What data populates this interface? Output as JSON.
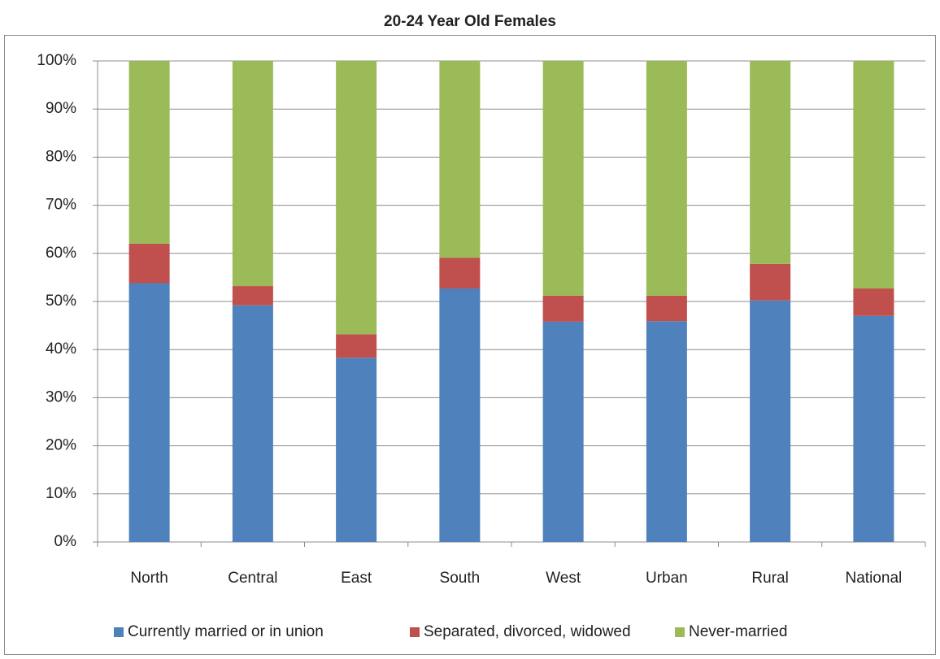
{
  "chart_data": {
    "type": "bar",
    "stacked": true,
    "title": "20-24 Year Old Females",
    "categories": [
      "North",
      "Central",
      "East",
      "South",
      "West",
      "Urban",
      "Rural",
      "National"
    ],
    "series": [
      {
        "name": "Currently married or in union",
        "color": "#4f81bd",
        "values": [
          53.8,
          49.2,
          38.3,
          52.7,
          45.8,
          45.9,
          50.2,
          47.0
        ]
      },
      {
        "name": "Separated, divorced, widowed",
        "color": "#c0504d",
        "values": [
          8.2,
          4.0,
          4.9,
          6.4,
          5.4,
          5.3,
          7.6,
          5.7
        ]
      },
      {
        "name": "Never-married",
        "color": "#9bbb59",
        "values": [
          38.0,
          46.8,
          56.8,
          40.9,
          48.8,
          48.8,
          42.2,
          47.3
        ]
      }
    ],
    "ylim": [
      0,
      100
    ],
    "yticks": [
      {
        "value": 0,
        "label": "0%"
      },
      {
        "value": 10,
        "label": "10%"
      },
      {
        "value": 20,
        "label": "20%"
      },
      {
        "value": 30,
        "label": "30%"
      },
      {
        "value": 40,
        "label": "40%"
      },
      {
        "value": 50,
        "label": "50%"
      },
      {
        "value": 60,
        "label": "60%"
      },
      {
        "value": 70,
        "label": "70%"
      },
      {
        "value": 80,
        "label": "80%"
      },
      {
        "value": 90,
        "label": "90%"
      },
      {
        "value": 100,
        "label": "100%"
      }
    ],
    "grid": true,
    "legend": "bottom"
  }
}
